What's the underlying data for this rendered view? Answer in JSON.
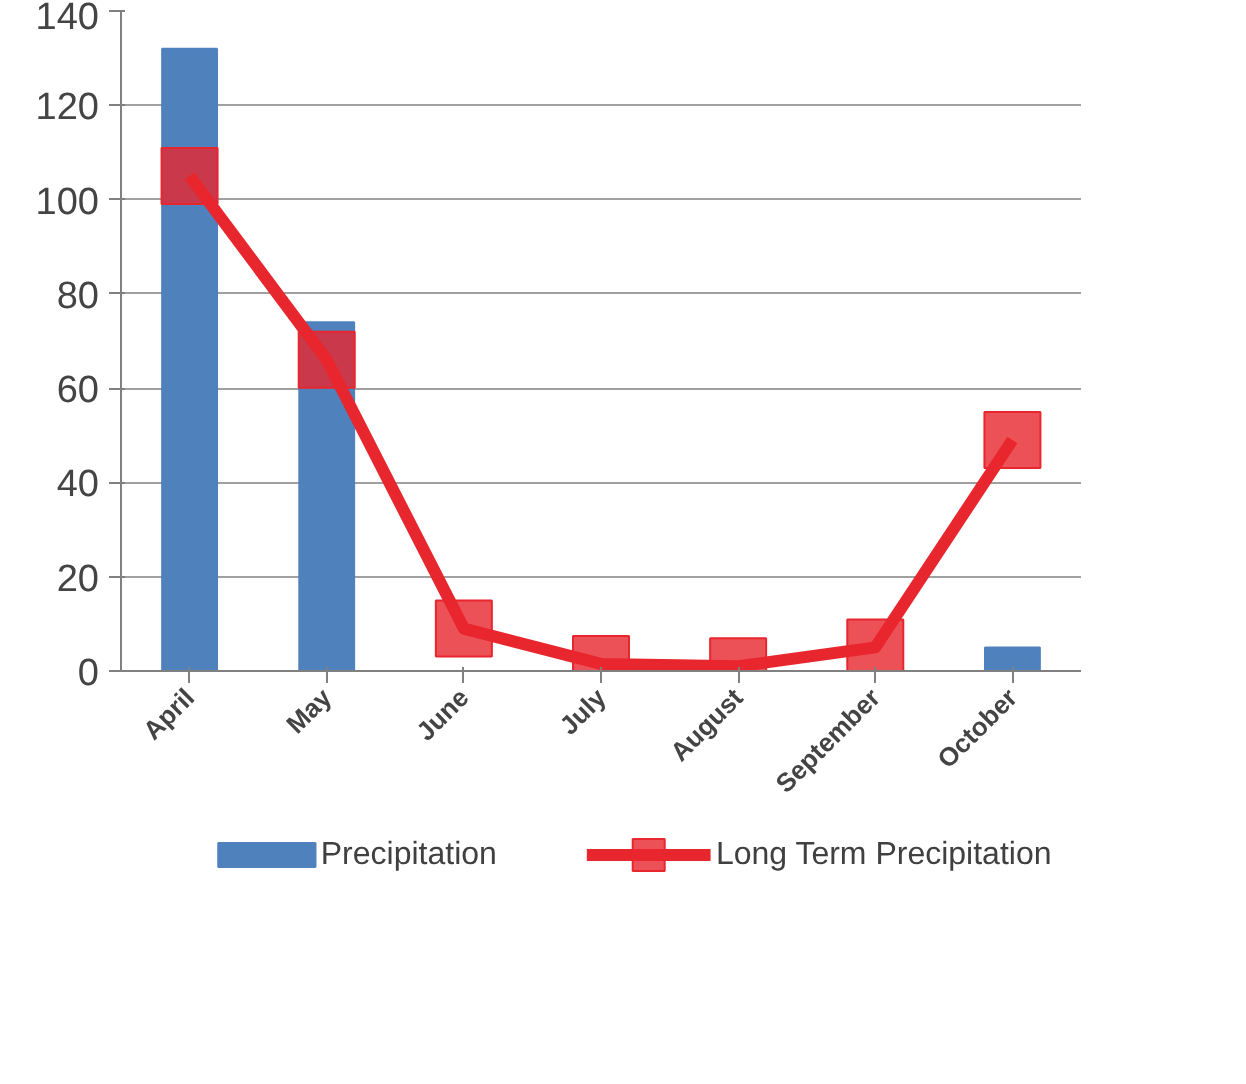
{
  "chart_data": {
    "type": "bar",
    "categories": [
      "April",
      "May",
      "June",
      "July",
      "August",
      "September",
      "October"
    ],
    "series": [
      {
        "name": "Precipitation",
        "color": "#4f81bd",
        "values": [
          132,
          74,
          0,
          0,
          0,
          0,
          5
        ]
      },
      {
        "name": "Long Term Precipitation",
        "type": "line",
        "color": "#e8262e",
        "marker": "square",
        "values": [
          105,
          66,
          9,
          1.5,
          1,
          5,
          49
        ]
      }
    ],
    "ylim": [
      0,
      140
    ],
    "yticks": [
      0,
      20,
      40,
      60,
      80,
      100,
      120,
      140
    ],
    "grid": "y",
    "legend": "bottom"
  }
}
